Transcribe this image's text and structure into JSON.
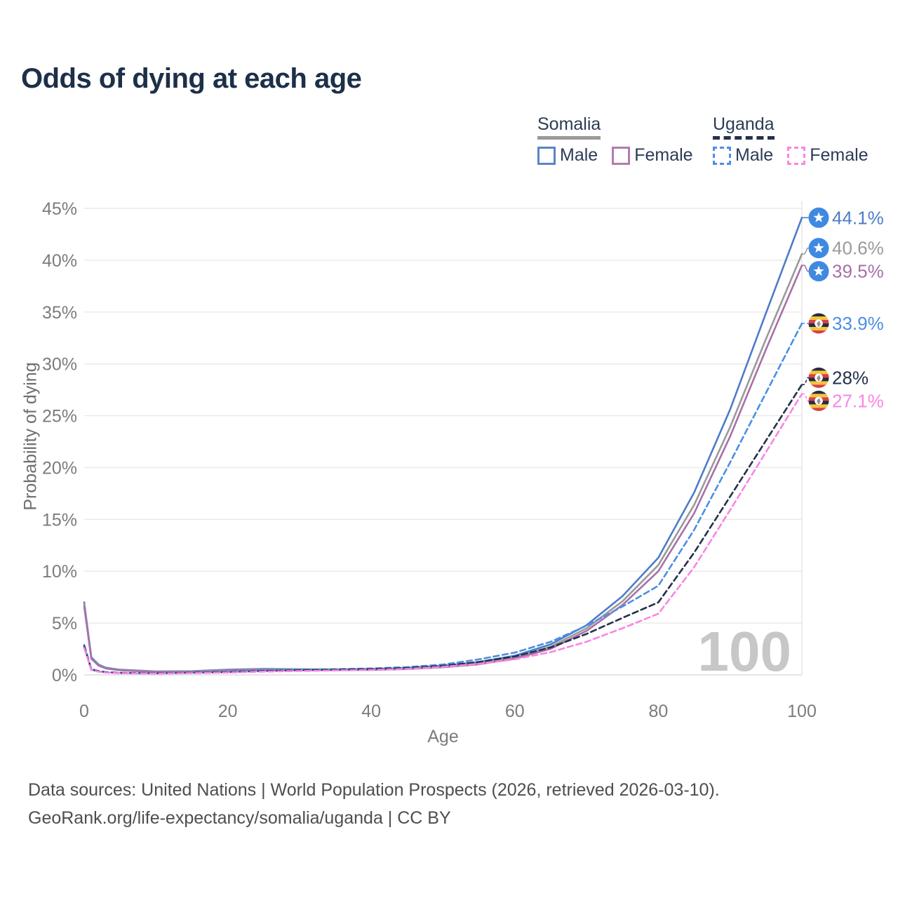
{
  "title": "Odds of dying at each age",
  "legend": {
    "groups": [
      {
        "name": "Somalia",
        "line_style": "solid",
        "line_color": "#9a9a9a",
        "items": [
          {
            "label": "Male",
            "color": "#5b84c4",
            "style": "solid"
          },
          {
            "label": "Female",
            "color": "#b27cb0",
            "style": "solid"
          }
        ]
      },
      {
        "name": "Uganda",
        "line_style": "dashed",
        "line_color": "#25314b",
        "items": [
          {
            "label": "Male",
            "color": "#4b8fe2",
            "style": "dashed"
          },
          {
            "label": "Female",
            "color": "#f985e5",
            "style": "dashed"
          }
        ]
      }
    ]
  },
  "chart_data": {
    "type": "line",
    "title": "Odds of dying at each age",
    "xlabel": "Age",
    "ylabel": "Probability of dying",
    "xlim": [
      0,
      100
    ],
    "ylim": [
      0,
      45
    ],
    "x_ticks": [
      0,
      20,
      40,
      60,
      80,
      100
    ],
    "y_ticks": [
      0,
      5,
      10,
      15,
      20,
      25,
      30,
      35,
      40,
      45
    ],
    "y_tick_suffix": "%",
    "grid": "horizontal",
    "legend_position": "top-right",
    "hover_age_label": "100",
    "x": [
      0,
      1,
      2,
      3,
      5,
      10,
      15,
      20,
      25,
      30,
      35,
      40,
      45,
      50,
      55,
      60,
      65,
      70,
      75,
      80,
      85,
      90,
      95,
      100
    ],
    "series": [
      {
        "name": "Somalia Male",
        "country": "Somalia",
        "flag": "somalia",
        "style": "solid",
        "color": "#4d7cc9",
        "end_label": "44.1%",
        "values": [
          7.0,
          1.7,
          1.0,
          0.7,
          0.5,
          0.33,
          0.36,
          0.5,
          0.58,
          0.55,
          0.53,
          0.56,
          0.66,
          0.87,
          1.25,
          1.85,
          2.95,
          4.8,
          7.6,
          11.3,
          17.6,
          25.6,
          34.9,
          44.1
        ]
      },
      {
        "name": "Somalia",
        "country": "Somalia",
        "flag": "somalia",
        "style": "solid",
        "color": "#9a9a9a",
        "end_label": "40.6%",
        "values": [
          6.8,
          1.6,
          0.95,
          0.65,
          0.47,
          0.3,
          0.33,
          0.45,
          0.52,
          0.5,
          0.49,
          0.51,
          0.61,
          0.8,
          1.12,
          1.68,
          2.72,
          4.5,
          7.1,
          10.6,
          16.4,
          23.9,
          32.4,
          40.6
        ]
      },
      {
        "name": "Somalia Female",
        "country": "Somalia",
        "flag": "somalia",
        "style": "solid",
        "color": "#a770aa",
        "end_label": "39.5%",
        "values": [
          6.6,
          1.55,
          0.9,
          0.62,
          0.45,
          0.28,
          0.3,
          0.41,
          0.46,
          0.46,
          0.46,
          0.48,
          0.56,
          0.74,
          1.02,
          1.56,
          2.52,
          4.25,
          6.75,
          10.0,
          15.6,
          23.0,
          31.4,
          39.5
        ]
      },
      {
        "name": "Uganda Male",
        "country": "Uganda",
        "flag": "uganda",
        "style": "dashed",
        "color": "#4b8fe2",
        "end_label": "33.9%",
        "values": [
          2.9,
          0.55,
          0.38,
          0.28,
          0.2,
          0.16,
          0.23,
          0.3,
          0.42,
          0.5,
          0.55,
          0.62,
          0.75,
          1.0,
          1.5,
          2.15,
          3.2,
          4.75,
          6.6,
          8.6,
          14.0,
          20.5,
          27.2,
          33.9
        ]
      },
      {
        "name": "Uganda",
        "country": "Uganda",
        "flag": "uganda",
        "style": "dashed",
        "color": "#25314b",
        "end_label": "28%",
        "values": [
          2.75,
          0.5,
          0.34,
          0.25,
          0.18,
          0.14,
          0.2,
          0.26,
          0.38,
          0.45,
          0.5,
          0.56,
          0.67,
          0.88,
          1.25,
          1.78,
          2.65,
          3.95,
          5.5,
          7.0,
          11.8,
          17.2,
          22.6,
          28.0
        ]
      },
      {
        "name": "Uganda Female",
        "country": "Uganda",
        "flag": "uganda",
        "style": "dashed",
        "color": "#f985e5",
        "end_label": "27.1%",
        "values": [
          2.6,
          0.46,
          0.31,
          0.22,
          0.16,
          0.12,
          0.17,
          0.22,
          0.32,
          0.38,
          0.43,
          0.48,
          0.58,
          0.78,
          1.06,
          1.5,
          2.2,
          3.2,
          4.5,
          5.9,
          10.4,
          15.9,
          21.5,
          27.1
        ]
      }
    ]
  },
  "flag_colors": {
    "somalia": {
      "bg": "#3f8ae0",
      "star": "#ffffff"
    },
    "uganda": {
      "stripes": [
        "#272c3f",
        "#f5c53c",
        "#d6404a"
      ],
      "disc": "#ffffff",
      "crane": "#8e93a0"
    }
  },
  "footer": {
    "line1": "Data sources: United Nations | World Population Prospects (2026, retrieved 2026-03-10).",
    "line2": "GeoRank.org/life-expectancy/somalia/uganda | CC BY"
  }
}
